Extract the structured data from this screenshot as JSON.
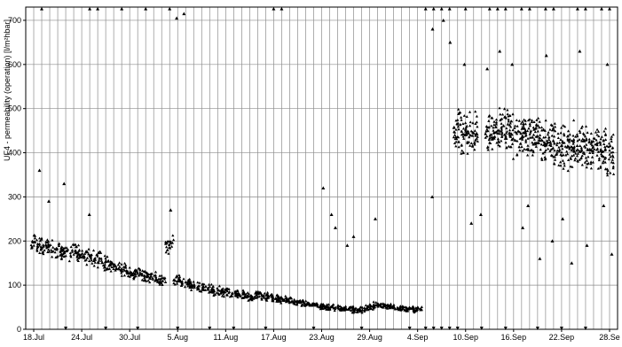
{
  "chart_data": {
    "type": "scatter",
    "title": "",
    "xlabel": "",
    "ylabel": "UF4 - permeability (operation) [l/m²hbar]",
    "ylim": [
      0,
      730
    ],
    "xlim": [
      "2023-07-17",
      "2023-09-29"
    ],
    "y_ticks": [
      0,
      100,
      200,
      300,
      400,
      500,
      600,
      700
    ],
    "x_ticks": [
      {
        "date": "2023-07-18",
        "label": "18.Jul"
      },
      {
        "date": "2023-07-24",
        "label": "24.Jul"
      },
      {
        "date": "2023-07-30",
        "label": "30.Jul"
      },
      {
        "date": "2023-08-05",
        "label": "5.Aug"
      },
      {
        "date": "2023-08-11",
        "label": "11.Aug"
      },
      {
        "date": "2023-08-17",
        "label": "17.Aug"
      },
      {
        "date": "2023-08-23",
        "label": "23.Aug"
      },
      {
        "date": "2023-08-29",
        "label": "29.Aug"
      },
      {
        "date": "2023-09-04",
        "label": "4.Sep"
      },
      {
        "date": "2023-09-10",
        "label": "10.Sep"
      },
      {
        "date": "2023-09-16",
        "label": "16.Sep"
      },
      {
        "date": "2023-09-22",
        "label": "22.Sep"
      },
      {
        "date": "2023-09-28",
        "label": "28.Se"
      }
    ],
    "grid": {
      "vertical": "daily",
      "horizontal": "every 100"
    },
    "marker": "filled triangle",
    "marker_color": "#000000",
    "series": [
      {
        "values": [
          {
            "x": "2023-07-18",
            "y": 200
          },
          {
            "x": "2023-07-19",
            "y": 190
          },
          {
            "x": "2023-07-20",
            "y": 185
          },
          {
            "x": "2023-07-21",
            "y": 180
          },
          {
            "x": "2023-07-22",
            "y": 178
          },
          {
            "x": "2023-07-23",
            "y": 175
          },
          {
            "x": "2023-07-24",
            "y": 172
          },
          {
            "x": "2023-07-25",
            "y": 165
          },
          {
            "x": "2023-07-26",
            "y": 158
          },
          {
            "x": "2023-07-27",
            "y": 150
          },
          {
            "x": "2023-07-28",
            "y": 142
          },
          {
            "x": "2023-07-29",
            "y": 135
          },
          {
            "x": "2023-07-30",
            "y": 128
          },
          {
            "x": "2023-07-31",
            "y": 125
          },
          {
            "x": "2023-08-01",
            "y": 120
          },
          {
            "x": "2023-08-02",
            "y": 118
          },
          {
            "x": "2023-08-03",
            "y": 112
          },
          {
            "x": "2023-08-04",
            "y": 190
          },
          {
            "x": "2023-08-05",
            "y": 110
          },
          {
            "x": "2023-08-06",
            "y": 105
          },
          {
            "x": "2023-08-07",
            "y": 100
          },
          {
            "x": "2023-08-08",
            "y": 95
          },
          {
            "x": "2023-08-09",
            "y": 92
          },
          {
            "x": "2023-08-10",
            "y": 88
          },
          {
            "x": "2023-08-11",
            "y": 85
          },
          {
            "x": "2023-08-12",
            "y": 80
          },
          {
            "x": "2023-08-13",
            "y": 78
          },
          {
            "x": "2023-08-14",
            "y": 75
          },
          {
            "x": "2023-08-15",
            "y": 80
          },
          {
            "x": "2023-08-16",
            "y": 75
          },
          {
            "x": "2023-08-17",
            "y": 72
          },
          {
            "x": "2023-08-18",
            "y": 68
          },
          {
            "x": "2023-08-19",
            "y": 65
          },
          {
            "x": "2023-08-20",
            "y": 62
          },
          {
            "x": "2023-08-21",
            "y": 60
          },
          {
            "x": "2023-08-22",
            "y": 55
          },
          {
            "x": "2023-08-23",
            "y": 52
          },
          {
            "x": "2023-08-24",
            "y": 50
          },
          {
            "x": "2023-08-25",
            "y": 48
          },
          {
            "x": "2023-08-26",
            "y": 46
          },
          {
            "x": "2023-08-27",
            "y": 45
          },
          {
            "x": "2023-08-28",
            "y": 44
          },
          {
            "x": "2023-08-29",
            "y": 50
          },
          {
            "x": "2023-08-30",
            "y": 55
          },
          {
            "x": "2023-08-31",
            "y": 52
          },
          {
            "x": "2023-09-01",
            "y": 50
          },
          {
            "x": "2023-09-02",
            "y": 48
          },
          {
            "x": "2023-09-03",
            "y": 47
          },
          {
            "x": "2023-09-04",
            "y": 45
          },
          {
            "x": "2023-09-09",
            "y": 450
          },
          {
            "x": "2023-09-10",
            "y": 440
          },
          {
            "x": "2023-09-11",
            "y": 445
          },
          {
            "x": "2023-09-13",
            "y": 450
          },
          {
            "x": "2023-09-14",
            "y": 455
          },
          {
            "x": "2023-09-15",
            "y": 450
          },
          {
            "x": "2023-09-16",
            "y": 440
          },
          {
            "x": "2023-09-17",
            "y": 445
          },
          {
            "x": "2023-09-18",
            "y": 430
          },
          {
            "x": "2023-09-19",
            "y": 440
          },
          {
            "x": "2023-09-20",
            "y": 425
          },
          {
            "x": "2023-09-21",
            "y": 420
          },
          {
            "x": "2023-09-22",
            "y": 415
          },
          {
            "x": "2023-09-23",
            "y": 410
          },
          {
            "x": "2023-09-24",
            "y": 420
          },
          {
            "x": "2023-09-25",
            "y": 415
          },
          {
            "x": "2023-09-26",
            "y": 410
          },
          {
            "x": "2023-09-27",
            "y": 405
          },
          {
            "x": "2023-09-28",
            "y": 400
          }
        ]
      }
    ],
    "outliers": [
      {
        "x": "2023-07-19",
        "y": 360
      },
      {
        "x": "2023-07-20",
        "y": 290
      },
      {
        "x": "2023-07-22",
        "y": 330
      },
      {
        "x": "2023-07-25",
        "y": 260
      },
      {
        "x": "2023-08-04",
        "y": 270
      },
      {
        "x": "2023-08-05",
        "y": 705
      },
      {
        "x": "2023-08-06",
        "y": 715
      },
      {
        "x": "2023-08-23",
        "y": 320
      },
      {
        "x": "2023-08-24",
        "y": 260
      },
      {
        "x": "2023-08-25",
        "y": 230
      },
      {
        "x": "2023-08-26",
        "y": 190
      },
      {
        "x": "2023-08-27",
        "y": 210
      },
      {
        "x": "2023-08-30",
        "y": 250
      },
      {
        "x": "2023-09-06",
        "y": 300
      },
      {
        "x": "2023-09-06",
        "y": 680
      },
      {
        "x": "2023-09-07",
        "y": 700
      },
      {
        "x": "2023-09-08",
        "y": 650
      },
      {
        "x": "2023-09-10",
        "y": 600
      },
      {
        "x": "2023-09-11",
        "y": 240
      },
      {
        "x": "2023-09-12",
        "y": 260
      },
      {
        "x": "2023-09-13",
        "y": 590
      },
      {
        "x": "2023-09-14",
        "y": 630
      },
      {
        "x": "2023-09-16",
        "y": 600
      },
      {
        "x": "2023-09-17",
        "y": 230
      },
      {
        "x": "2023-09-18",
        "y": 280
      },
      {
        "x": "2023-09-19",
        "y": 160
      },
      {
        "x": "2023-09-20",
        "y": 620
      },
      {
        "x": "2023-09-21",
        "y": 200
      },
      {
        "x": "2023-09-22",
        "y": 250
      },
      {
        "x": "2023-09-23",
        "y": 150
      },
      {
        "x": "2023-09-24",
        "y": 630
      },
      {
        "x": "2023-09-25",
        "y": 190
      },
      {
        "x": "2023-09-27",
        "y": 280
      },
      {
        "x": "2023-09-28",
        "y": 600
      },
      {
        "x": "2023-09-28",
        "y": 170
      }
    ],
    "clipped_above": [
      "2023-07-19",
      "2023-07-25",
      "2023-07-26",
      "2023-07-29",
      "2023-08-01",
      "2023-08-04",
      "2023-08-17",
      "2023-08-18",
      "2023-09-05",
      "2023-09-06",
      "2023-09-07",
      "2023-09-08",
      "2023-09-10",
      "2023-09-13",
      "2023-09-14",
      "2023-09-15",
      "2023-09-17",
      "2023-09-18",
      "2023-09-20",
      "2023-09-21",
      "2023-09-24",
      "2023-09-25",
      "2023-09-27",
      "2023-09-28"
    ],
    "clipped_below": [
      "2023-07-22",
      "2023-07-27",
      "2023-07-31",
      "2023-08-05",
      "2023-08-09",
      "2023-08-12",
      "2023-08-16",
      "2023-08-22",
      "2023-08-28",
      "2023-09-03",
      "2023-09-05",
      "2023-09-06",
      "2023-09-07",
      "2023-09-08",
      "2023-09-09",
      "2023-09-12",
      "2023-09-15",
      "2023-09-19",
      "2023-09-22",
      "2023-09-25"
    ]
  }
}
